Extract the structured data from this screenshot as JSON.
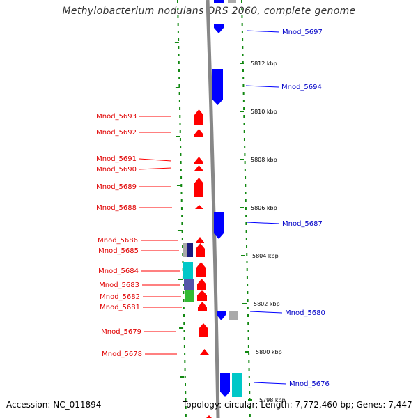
{
  "title": "Methylobacterium nodulans ORS 2060, complete genome",
  "accession_text": "Accession: NC_011894",
  "topology_text": "Topology: circular; Length: 7,772,460 bp; Genes: 7,447",
  "colors": {
    "forward": "#ff0000",
    "reverse": "#0000ff",
    "backbone": "#888888",
    "ticks": "#118811",
    "cyan": "#00c8c8",
    "navy": "#1a1a80",
    "gray": "#aaaaaa",
    "purple": "#5555aa",
    "green": "#33bb33"
  },
  "scale_labels": [
    "5812 kbp",
    "5810 kbp",
    "5808 kbp",
    "5806 kbp",
    "5804 kbp",
    "5802 kbp",
    "5800 kbp",
    "5798 kbp"
  ],
  "left_genes": [
    "Mnod_5693",
    "Mnod_5692",
    "Mnod_5691",
    "Mnod_5690",
    "Mnod_5689",
    "Mnod_5688",
    "Mnod_5686",
    "Mnod_5685",
    "Mnod_5684",
    "Mnod_5683",
    "Mnod_5682",
    "Mnod_5681",
    "Mnod_5679",
    "Mnod_5678"
  ],
  "right_genes": [
    "Mnod_5697",
    "Mnod_5694",
    "Mnod_5687",
    "Mnod_5680",
    "Mnod_5676"
  ]
}
